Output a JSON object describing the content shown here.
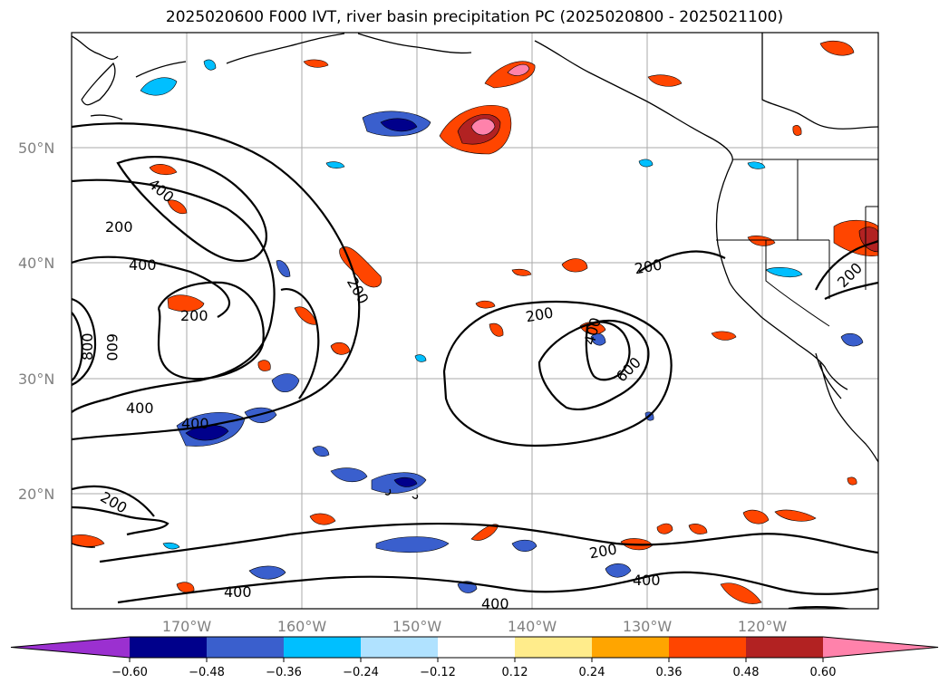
{
  "title": "2025020600 F000 IVT, river basin precipitation PC (2025020800 - 2025021100)",
  "map": {
    "lat_labels": [
      {
        "text": "50°N",
        "lat": 50
      },
      {
        "text": "40°N",
        "lat": 40
      },
      {
        "text": "30°N",
        "lat": 30
      },
      {
        "text": "20°N",
        "lat": 20
      }
    ],
    "lon_labels": [
      {
        "text": "170°W",
        "lon": -170
      },
      {
        "text": "160°W",
        "lon": -160
      },
      {
        "text": "150°W",
        "lon": -150
      },
      {
        "text": "140°W",
        "lon": -140
      },
      {
        "text": "130°W",
        "lon": -130
      },
      {
        "text": "120°W",
        "lon": -120
      }
    ],
    "contour_labels": [
      "400",
      "200",
      "400",
      "200",
      "200",
      "600",
      "800",
      "400",
      "400",
      "200",
      "200",
      "600",
      "200",
      "400",
      "200",
      "200",
      "400",
      "400"
    ]
  },
  "colorbar": {
    "ticks": [
      "−0.60",
      "−0.48",
      "−0.36",
      "−0.24",
      "−0.12",
      "0.12",
      "0.24",
      "0.36",
      "0.48",
      "0.60"
    ],
    "colors": [
      "#9b30d0",
      "#00008b",
      "#3a5fcd",
      "#00bfff",
      "#b0e2ff",
      "#ffffff",
      "#ffec8b",
      "#ffa500",
      "#ff4500",
      "#b22222",
      "#ff82ab"
    ]
  }
}
